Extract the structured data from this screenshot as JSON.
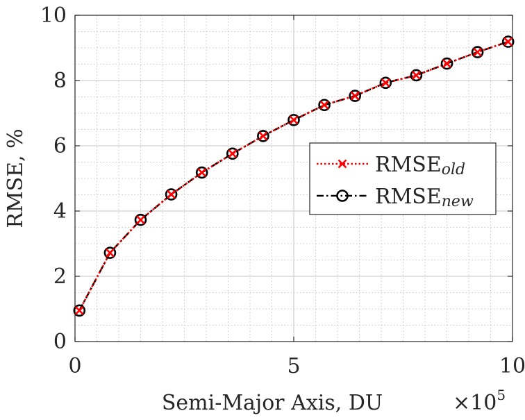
{
  "chart_data": {
    "type": "line",
    "title": "",
    "xlabel": "Semi-Major Axis, DU",
    "ylabel": "RMSE, %",
    "x_multiplier_label": "×10",
    "x_multiplier_exponent": "5",
    "xlim": [
      0,
      10
    ],
    "ylim": [
      0,
      10
    ],
    "x_ticks": [
      0,
      5,
      10
    ],
    "x_tick_labels": [
      "0",
      "5",
      "10"
    ],
    "y_ticks": [
      0,
      2,
      4,
      6,
      8,
      10
    ],
    "y_tick_labels": [
      "0",
      "2",
      "4",
      "6",
      "8",
      "10"
    ],
    "grid": true,
    "minor_grid": true,
    "legend_position": "right",
    "x": [
      0.1,
      0.8,
      1.5,
      2.2,
      2.9,
      3.6,
      4.3,
      5.0,
      5.7,
      6.4,
      7.1,
      7.8,
      8.5,
      9.2,
      9.9
    ],
    "series": [
      {
        "name": "RMSE",
        "name_subscript": "old",
        "color": "#ff0000",
        "line_style": "dotted",
        "marker": "x",
        "values": [
          0.95,
          2.72,
          3.73,
          4.51,
          5.18,
          5.76,
          6.3,
          6.79,
          7.25,
          7.53,
          7.93,
          8.16,
          8.52,
          8.87,
          9.19
        ]
      },
      {
        "name": "RMSE",
        "name_subscript": "new",
        "color": "#000000",
        "line_style": "dash-dot",
        "marker": "o",
        "values": [
          0.95,
          2.72,
          3.73,
          4.51,
          5.18,
          5.76,
          6.3,
          6.79,
          7.25,
          7.53,
          7.93,
          8.16,
          8.52,
          8.87,
          9.19
        ]
      }
    ]
  }
}
